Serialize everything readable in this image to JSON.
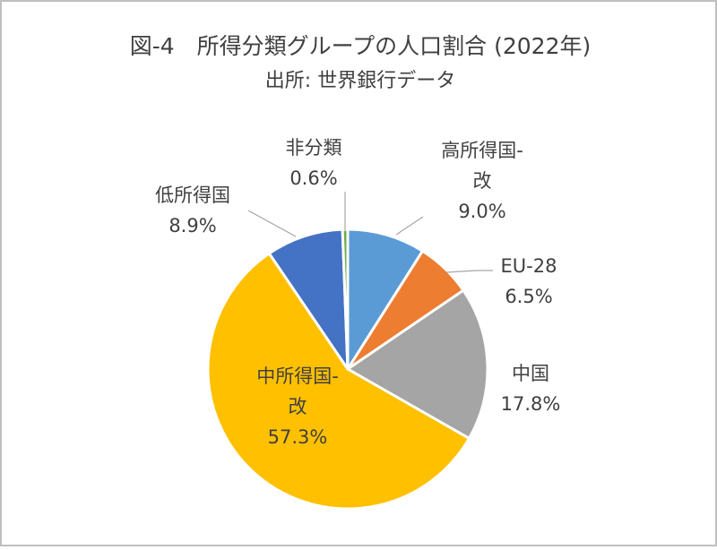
{
  "chart": {
    "title": "図-4　所得分類グループの人口割合 (2022年)",
    "subtitle": "出所: 世界銀行データ"
  },
  "chart_data": {
    "type": "pie",
    "title": "図-4　所得分類グループの人口割合 (2022年)",
    "subtitle": "出所: 世界銀行データ",
    "unit": "%",
    "legend": "none",
    "slices": [
      {
        "label": "高所得国-改",
        "value": 9.0,
        "display": "9.0%",
        "label_lines": [
          "高所得国-",
          "改"
        ],
        "color": "#5b9bd5"
      },
      {
        "label": "EU-28",
        "value": 6.5,
        "display": "6.5%",
        "label_lines": [
          "EU-28"
        ],
        "color": "#ed7d31"
      },
      {
        "label": "中国",
        "value": 17.8,
        "display": "17.8%",
        "label_lines": [
          "中国"
        ],
        "color": "#a5a5a5"
      },
      {
        "label": "中所得国-改",
        "value": 57.3,
        "display": "57.3%",
        "label_lines": [
          "中所得国-",
          "改"
        ],
        "color": "#ffc000"
      },
      {
        "label": "低所得国",
        "value": 8.9,
        "display": "8.9%",
        "label_lines": [
          "低所得国"
        ],
        "color": "#4472c4"
      },
      {
        "label": "非分類",
        "value": 0.6,
        "display": "0.6%",
        "label_lines": [
          "非分類"
        ],
        "color": "#70ad47"
      }
    ]
  }
}
